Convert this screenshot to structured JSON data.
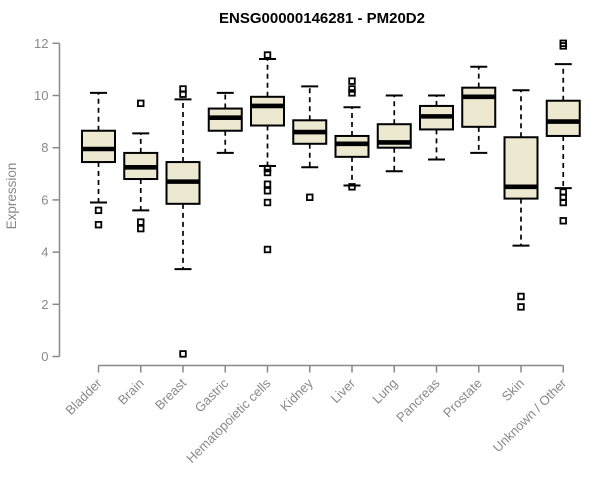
{
  "chart_data": {
    "type": "boxplot",
    "title": "ENSG00000146281 - PM20D2",
    "ylabel": "Expression",
    "xlabel": "",
    "ylim": [
      0,
      12
    ],
    "yticks": [
      0,
      2,
      4,
      6,
      8,
      10,
      12
    ],
    "grid": false,
    "legend": "none",
    "colors": {
      "box_fill": "#EDE8D0",
      "box_border": "#000000",
      "median": "#000000",
      "axis": "#898989",
      "title": "#000000"
    },
    "categories": [
      "Bladder",
      "Brain",
      "Breast",
      "Gastric",
      "Hematopoietic cells",
      "Kidney",
      "Liver",
      "Lung",
      "Pancreas",
      "Prostate",
      "Skin",
      "Unknown / Other"
    ],
    "boxes": [
      {
        "name": "Bladder",
        "lo": 5.9,
        "q1": 7.45,
        "med": 7.95,
        "q3": 8.65,
        "hi": 10.1,
        "outliers": [
          5.6,
          5.05
        ]
      },
      {
        "name": "Brain",
        "lo": 5.6,
        "q1": 6.8,
        "med": 7.25,
        "q3": 7.8,
        "hi": 8.55,
        "outliers": [
          9.7,
          5.15,
          4.9
        ]
      },
      {
        "name": "Breast",
        "lo": 3.35,
        "q1": 5.85,
        "med": 6.7,
        "q3": 7.45,
        "hi": 9.85,
        "outliers": [
          10.25,
          10.05,
          0.1
        ]
      },
      {
        "name": "Gastric",
        "lo": 7.8,
        "q1": 8.65,
        "med": 9.15,
        "q3": 9.5,
        "hi": 10.1,
        "outliers": []
      },
      {
        "name": "Hematopoietic cells",
        "lo": 7.3,
        "q1": 8.85,
        "med": 9.6,
        "q3": 9.95,
        "hi": 11.4,
        "outliers": [
          11.55,
          7.2,
          7.05,
          6.6,
          6.35,
          5.9,
          4.1
        ]
      },
      {
        "name": "Kidney",
        "lo": 7.25,
        "q1": 8.15,
        "med": 8.6,
        "q3": 9.05,
        "hi": 10.35,
        "outliers": [
          6.1
        ]
      },
      {
        "name": "Liver",
        "lo": 6.55,
        "q1": 7.65,
        "med": 8.15,
        "q3": 8.45,
        "hi": 9.55,
        "outliers": [
          10.55,
          10.25,
          10.1,
          6.5
        ]
      },
      {
        "name": "Lung",
        "lo": 7.1,
        "q1": 8.0,
        "med": 8.2,
        "q3": 8.9,
        "hi": 10.0,
        "outliers": []
      },
      {
        "name": "Pancreas",
        "lo": 7.55,
        "q1": 8.7,
        "med": 9.2,
        "q3": 9.6,
        "hi": 10.0,
        "outliers": []
      },
      {
        "name": "Prostate",
        "lo": 7.8,
        "q1": 8.8,
        "med": 9.95,
        "q3": 10.3,
        "hi": 11.1,
        "outliers": []
      },
      {
        "name": "Skin",
        "lo": 4.25,
        "q1": 6.05,
        "med": 6.5,
        "q3": 8.4,
        "hi": 10.2,
        "outliers": [
          2.3,
          1.9
        ]
      },
      {
        "name": "Unknown / Other",
        "lo": 6.45,
        "q1": 8.45,
        "med": 9.0,
        "q3": 9.8,
        "hi": 11.2,
        "outliers": [
          12.0,
          11.9,
          6.3,
          6.1,
          5.9,
          5.2
        ]
      }
    ]
  }
}
